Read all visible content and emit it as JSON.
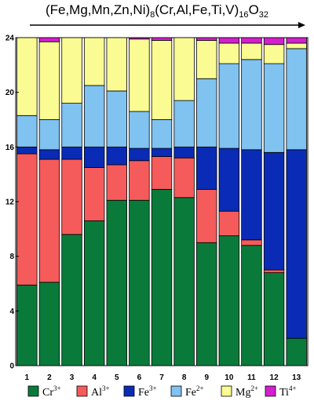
{
  "chart_data": {
    "type": "bar",
    "stacked": true,
    "title_parts": [
      {
        "text": "(Fe,Mg,Mn,Zn,Ni)",
        "sub": false
      },
      {
        "text": "8",
        "sub": true
      },
      {
        "text": "(Cr,Al,Fe,Ti,V)",
        "sub": false
      },
      {
        "text": "16",
        "sub": true
      },
      {
        "text": "O",
        "sub": false
      },
      {
        "text": "32",
        "sub": true
      }
    ],
    "categories": [
      "1",
      "2",
      "3",
      "4",
      "5",
      "6",
      "7",
      "8",
      "9",
      "10",
      "11",
      "12",
      "13"
    ],
    "ylim": [
      0,
      24
    ],
    "yticks": [
      "0",
      "4",
      "8",
      "12",
      "16",
      "20",
      "24"
    ],
    "legend_position": "bottom",
    "series": [
      {
        "name": "Cr",
        "charge": "3+",
        "color": "#0a7a3a",
        "values": [
          5.9,
          6.1,
          9.6,
          10.6,
          12.1,
          12.1,
          12.9,
          12.3,
          9.0,
          9.5,
          8.8,
          6.8,
          2.0
        ]
      },
      {
        "name": "Al",
        "charge": "3+",
        "color": "#f55b5b",
        "values": [
          9.6,
          9.0,
          5.5,
          3.9,
          2.6,
          2.9,
          2.4,
          2.9,
          3.9,
          1.8,
          0.4,
          0.2,
          0.0
        ]
      },
      {
        "name": "Fe",
        "charge": "3+",
        "color": "#0a2bb5",
        "values": [
          0.5,
          0.7,
          0.9,
          1.5,
          1.3,
          0.9,
          0.6,
          0.8,
          3.1,
          4.6,
          6.6,
          8.6,
          13.8
        ]
      },
      {
        "name": "Fe",
        "charge": "2+",
        "color": "#80c2f0",
        "values": [
          2.3,
          2.2,
          3.2,
          4.5,
          4.1,
          2.7,
          2.1,
          3.4,
          5.0,
          6.2,
          6.6,
          6.5,
          7.4
        ]
      },
      {
        "name": "Mg",
        "charge": "2+",
        "color": "#fbfb93",
        "values": [
          5.7,
          5.7,
          4.8,
          3.5,
          3.9,
          5.3,
          5.8,
          4.6,
          2.8,
          1.5,
          1.2,
          1.4,
          0.4
        ]
      },
      {
        "name": "Ti",
        "charge": "4+",
        "color": "#d41fcf",
        "values": [
          0.0,
          0.3,
          0.0,
          0.0,
          0.0,
          0.1,
          0.2,
          0.0,
          0.2,
          0.4,
          0.4,
          0.5,
          0.4
        ]
      }
    ]
  }
}
